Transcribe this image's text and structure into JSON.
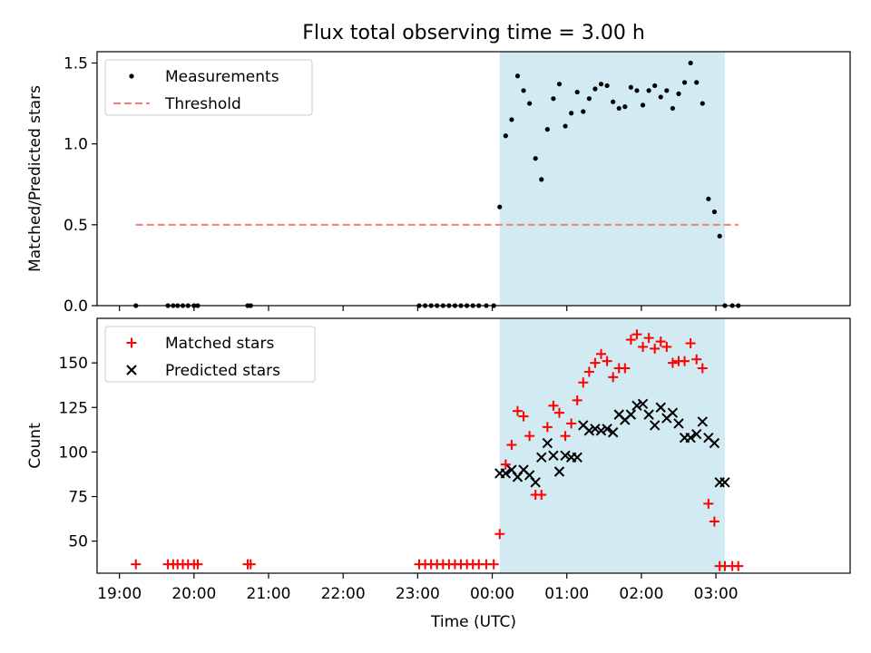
{
  "chart_data": {
    "title": "Flux total observing time = 3.00 h",
    "xlabel": "Time (UTC)",
    "x_unit": "hours since 19:00 UTC",
    "xlim": [
      -0.3,
      9.8
    ],
    "x_ticks": [
      {
        "value": 0,
        "label": "19:00"
      },
      {
        "value": 1,
        "label": "20:00"
      },
      {
        "value": 2,
        "label": "21:00"
      },
      {
        "value": 3,
        "label": "22:00"
      },
      {
        "value": 4,
        "label": "23:00"
      },
      {
        "value": 5,
        "label": "00:00"
      },
      {
        "value": 6,
        "label": "01:00"
      },
      {
        "value": 7,
        "label": "02:00"
      },
      {
        "value": 8,
        "label": "03:00"
      }
    ],
    "shaded_span": {
      "start": 5.1,
      "end": 8.12,
      "color": "#add8e6"
    },
    "panels": [
      {
        "id": "ratio",
        "type": "scatter",
        "ylabel": "Matched/Predicted stars",
        "ylim": [
          0,
          1.57
        ],
        "y_ticks": [
          {
            "value": 0,
            "label": "0.0"
          },
          {
            "value": 0.5,
            "label": "0.5"
          },
          {
            "value": 1.0,
            "label": "1.0"
          },
          {
            "value": 1.5,
            "label": "1.5"
          }
        ],
        "legend": [
          {
            "label": "Measurements",
            "marker": "dot",
            "color": "#000000"
          },
          {
            "label": "Threshold",
            "marker": "dashed-line",
            "color": "#f08080"
          }
        ],
        "threshold": {
          "value": 0.5,
          "x_start": 0.22,
          "x_end": 8.3,
          "color": "#f08080"
        },
        "series": [
          {
            "name": "Measurements",
            "x": [
              0.22,
              0.65,
              0.72,
              0.78,
              0.85,
              0.92,
              1.0,
              1.05,
              1.72,
              1.76,
              4.02,
              4.1,
              4.18,
              4.26,
              4.34,
              4.42,
              4.5,
              4.58,
              4.66,
              4.74,
              4.82,
              4.92,
              5.02,
              5.1,
              5.18,
              5.26,
              5.34,
              5.42,
              5.5,
              5.58,
              5.66,
              5.74,
              5.82,
              5.9,
              5.98,
              6.06,
              6.14,
              6.22,
              6.3,
              6.38,
              6.46,
              6.54,
              6.62,
              6.7,
              6.78,
              6.86,
              6.94,
              7.02,
              7.1,
              7.18,
              7.26,
              7.34,
              7.42,
              7.5,
              7.58,
              7.66,
              7.74,
              7.82,
              7.9,
              7.98,
              8.05,
              8.12,
              8.22,
              8.3
            ],
            "y": [
              0.0,
              0.0,
              0.0,
              0.0,
              0.0,
              0.0,
              0.0,
              0.0,
              0.0,
              0.0,
              0.0,
              0.0,
              0.0,
              0.0,
              0.0,
              0.0,
              0.0,
              0.0,
              0.0,
              0.0,
              0.0,
              0.0,
              0.0,
              0.61,
              1.05,
              1.15,
              1.42,
              1.33,
              1.25,
              0.91,
              0.78,
              1.09,
              1.28,
              1.37,
              1.11,
              1.19,
              1.32,
              1.2,
              1.28,
              1.34,
              1.37,
              1.36,
              1.26,
              1.22,
              1.23,
              1.35,
              1.33,
              1.24,
              1.33,
              1.36,
              1.29,
              1.33,
              1.22,
              1.31,
              1.38,
              1.5,
              1.38,
              1.25,
              0.66,
              0.58,
              0.43,
              0.0,
              0.0,
              0.0
            ]
          }
        ]
      },
      {
        "id": "count",
        "type": "scatter",
        "ylabel": "Count",
        "ylim": [
          32,
          175
        ],
        "y_ticks": [
          {
            "value": 50,
            "label": "50"
          },
          {
            "value": 75,
            "label": "75"
          },
          {
            "value": 100,
            "label": "100"
          },
          {
            "value": 125,
            "label": "125"
          },
          {
            "value": 150,
            "label": "150"
          }
        ],
        "legend": [
          {
            "label": "Matched stars",
            "marker": "plus",
            "color": "#ff0000"
          },
          {
            "label": "Predicted stars",
            "marker": "x",
            "color": "#000000"
          }
        ],
        "series": [
          {
            "name": "Matched stars",
            "marker": "plus",
            "color": "#ff0000",
            "x": [
              0.22,
              0.65,
              0.72,
              0.78,
              0.85,
              0.92,
              1.0,
              1.05,
              1.72,
              1.76,
              4.02,
              4.1,
              4.18,
              4.26,
              4.34,
              4.42,
              4.5,
              4.58,
              4.66,
              4.74,
              4.82,
              4.92,
              5.02,
              5.1,
              5.18,
              5.26,
              5.34,
              5.42,
              5.5,
              5.58,
              5.66,
              5.74,
              5.82,
              5.9,
              5.98,
              6.06,
              6.14,
              6.22,
              6.3,
              6.38,
              6.46,
              6.54,
              6.62,
              6.7,
              6.78,
              6.86,
              6.94,
              7.02,
              7.1,
              7.18,
              7.26,
              7.34,
              7.42,
              7.5,
              7.58,
              7.66,
              7.74,
              7.82,
              7.9,
              7.98,
              8.05,
              8.12,
              8.22,
              8.3
            ],
            "y": [
              37,
              37,
              37,
              37,
              37,
              37,
              37,
              37,
              37,
              37,
              37,
              37,
              37,
              37,
              37,
              37,
              37,
              37,
              37,
              37,
              37,
              37,
              37,
              54,
              93,
              104,
              123,
              120,
              109,
              76,
              76,
              114,
              126,
              122,
              109,
              116,
              129,
              139,
              145,
              150,
              155,
              151,
              142,
              147,
              147,
              163,
              166,
              159,
              164,
              158,
              162,
              159,
              150,
              151,
              151,
              161,
              152,
              147,
              71,
              61,
              36,
              36,
              36,
              36
            ]
          },
          {
            "name": "Predicted stars",
            "marker": "x",
            "color": "#000000",
            "x": [
              5.1,
              5.18,
              5.26,
              5.34,
              5.42,
              5.5,
              5.58,
              5.66,
              5.74,
              5.82,
              5.9,
              5.98,
              6.06,
              6.14,
              6.22,
              6.3,
              6.38,
              6.46,
              6.54,
              6.62,
              6.7,
              6.78,
              6.86,
              6.94,
              7.02,
              7.1,
              7.18,
              7.26,
              7.34,
              7.42,
              7.5,
              7.58,
              7.66,
              7.74,
              7.82,
              7.9,
              7.98,
              8.05,
              8.12
            ],
            "y": [
              88,
              88,
              90,
              86,
              90,
              87,
              83,
              97,
              105,
              98,
              89,
              98,
              97,
              97,
              115,
              112,
              113,
              112,
              113,
              111,
              121,
              118,
              121,
              126,
              127,
              121,
              115,
              125,
              119,
              122,
              116,
              108,
              108,
              110,
              117,
              108,
              105,
              83,
              83
            ]
          }
        ]
      }
    ]
  }
}
